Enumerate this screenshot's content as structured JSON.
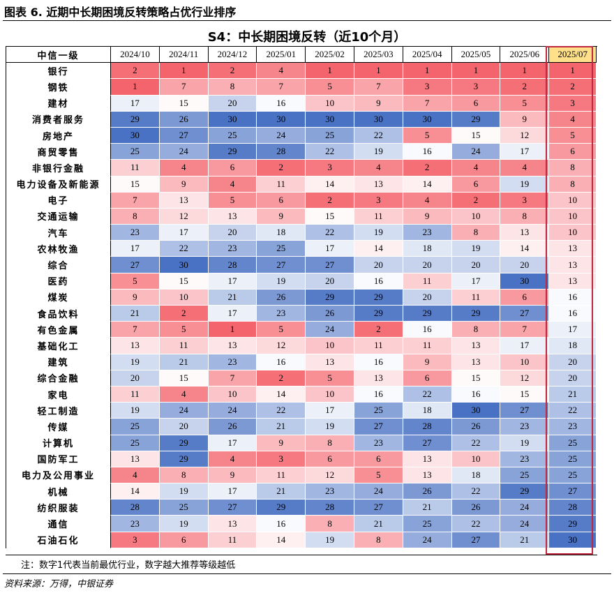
{
  "figure_title": "图表 6. 近期中长期困境反转策略占优行业排序",
  "table_title": "S4：中长期困境反转（近10个月）",
  "header": {
    "industry_col": "中信一级",
    "months": [
      "2024/10",
      "2024/11",
      "2024/12",
      "2025/01",
      "2025/02",
      "2025/03",
      "2025/04",
      "2025/05",
      "2025/06",
      "2025/07"
    ]
  },
  "rows": [
    {
      "name": "银行",
      "values": [
        2,
        1,
        2,
        4,
        1,
        1,
        1,
        1,
        1,
        1
      ]
    },
    {
      "name": "钢铁",
      "values": [
        1,
        7,
        8,
        7,
        5,
        7,
        3,
        3,
        2,
        2
      ]
    },
    {
      "name": "建材",
      "values": [
        17,
        15,
        20,
        16,
        10,
        9,
        7,
        6,
        5,
        3
      ]
    },
    {
      "name": "消费者服务",
      "values": [
        29,
        26,
        30,
        30,
        30,
        30,
        30,
        29,
        9,
        4
      ]
    },
    {
      "name": "房地产",
      "values": [
        30,
        27,
        25,
        24,
        25,
        22,
        5,
        15,
        12,
        5
      ]
    },
    {
      "name": "商贸零售",
      "values": [
        25,
        24,
        29,
        28,
        22,
        19,
        16,
        24,
        17,
        6
      ]
    },
    {
      "name": "非银行金融",
      "values": [
        11,
        4,
        6,
        2,
        3,
        4,
        2,
        4,
        4,
        8
      ]
    },
    {
      "name": "电力设备及新能源",
      "values": [
        15,
        9,
        4,
        11,
        14,
        13,
        14,
        6,
        19,
        8
      ]
    },
    {
      "name": "电子",
      "values": [
        7,
        13,
        5,
        6,
        2,
        3,
        4,
        2,
        3,
        10
      ]
    },
    {
      "name": "交通运输",
      "values": [
        8,
        12,
        13,
        9,
        15,
        11,
        9,
        10,
        8,
        10
      ]
    },
    {
      "name": "汽车",
      "values": [
        23,
        17,
        20,
        18,
        22,
        19,
        23,
        8,
        13,
        10
      ]
    },
    {
      "name": "农林牧渔",
      "values": [
        17,
        22,
        23,
        25,
        17,
        14,
        18,
        19,
        14,
        13
      ]
    },
    {
      "name": "综合",
      "values": [
        27,
        30,
        28,
        27,
        27,
        20,
        20,
        20,
        20,
        13
      ]
    },
    {
      "name": "医药",
      "values": [
        5,
        15,
        17,
        19,
        20,
        16,
        11,
        17,
        30,
        13
      ]
    },
    {
      "name": "煤炭",
      "values": [
        9,
        10,
        21,
        26,
        29,
        29,
        20,
        11,
        6,
        16
      ]
    },
    {
      "name": "食品饮料",
      "values": [
        21,
        2,
        17,
        23,
        26,
        29,
        29,
        29,
        27,
        16
      ]
    },
    {
      "name": "有色金属",
      "values": [
        7,
        5,
        1,
        5,
        24,
        2,
        16,
        8,
        7,
        17
      ]
    },
    {
      "name": "基础化工",
      "values": [
        13,
        11,
        13,
        12,
        10,
        11,
        11,
        13,
        17,
        18
      ]
    },
    {
      "name": "建筑",
      "values": [
        19,
        21,
        23,
        16,
        13,
        16,
        9,
        13,
        10,
        20
      ]
    },
    {
      "name": "综合金融",
      "values": [
        20,
        15,
        7,
        2,
        5,
        13,
        6,
        15,
        12,
        20
      ]
    },
    {
      "name": "家电",
      "values": [
        11,
        4,
        10,
        14,
        10,
        16,
        22,
        16,
        15,
        21
      ]
    },
    {
      "name": "轻工制造",
      "values": [
        19,
        24,
        24,
        22,
        17,
        25,
        18,
        30,
        27,
        22
      ]
    },
    {
      "name": "传媒",
      "values": [
        25,
        20,
        26,
        21,
        19,
        27,
        28,
        26,
        23,
        23
      ]
    },
    {
      "name": "计算机",
      "values": [
        25,
        29,
        17,
        9,
        8,
        23,
        27,
        22,
        19,
        25
      ]
    },
    {
      "name": "国防军工",
      "values": [
        13,
        29,
        4,
        3,
        6,
        6,
        13,
        10,
        23,
        25
      ]
    },
    {
      "name": "电力及公用事业",
      "values": [
        4,
        8,
        9,
        11,
        12,
        5,
        13,
        18,
        25,
        25
      ]
    },
    {
      "name": "机械",
      "values": [
        14,
        19,
        17,
        21,
        23,
        24,
        26,
        22,
        29,
        27
      ]
    },
    {
      "name": "纺织服装",
      "values": [
        28,
        25,
        27,
        29,
        28,
        27,
        21,
        26,
        24,
        28
      ]
    },
    {
      "name": "通信",
      "values": [
        23,
        19,
        13,
        16,
        8,
        21,
        25,
        22,
        24,
        29
      ]
    },
    {
      "name": "石油石化",
      "values": [
        3,
        6,
        11,
        14,
        19,
        8,
        24,
        27,
        21,
        30
      ]
    }
  ],
  "note": "注：数字1代表当前最优行业，数字越大推荐等级越低",
  "source": "资料来源：万得，中银证券",
  "colors": {
    "best": "#f4646d",
    "mid": "#ffffff",
    "worst": "#4a72c4",
    "highlight_header": "#ffe08a",
    "highlight_border": "#c0263d"
  }
}
